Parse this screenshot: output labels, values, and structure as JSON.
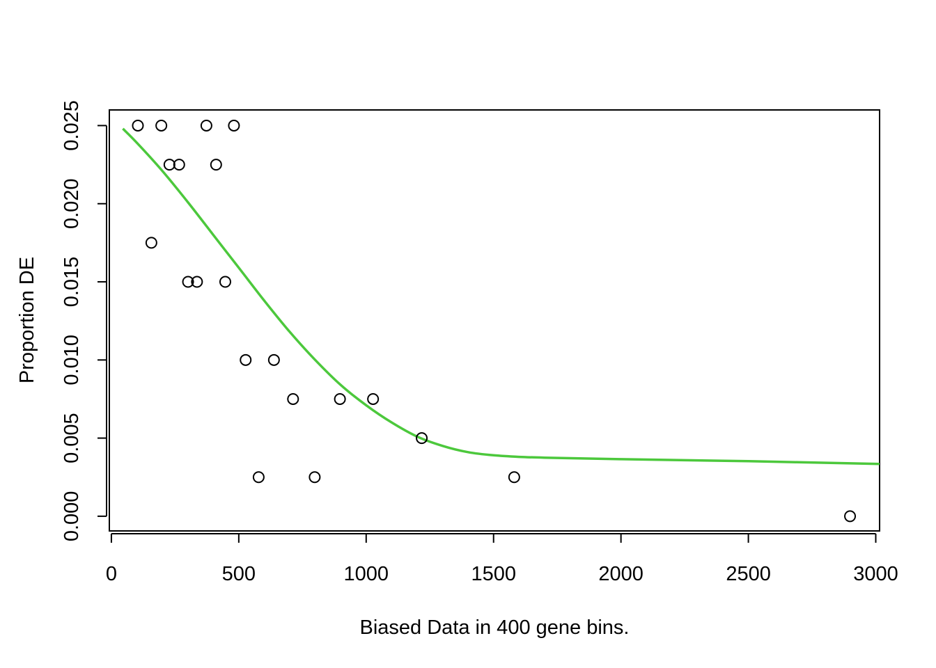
{
  "chart_data": {
    "type": "scatter",
    "title": "",
    "xlabel": "Biased Data in 400 gene bins.",
    "ylabel": "Proportion DE",
    "xlim": [
      -8,
      3015
    ],
    "ylim": [
      -0.00094,
      0.026
    ],
    "x_ticks": [
      0,
      500,
      1000,
      1500,
      2000,
      2500,
      3000
    ],
    "x_tick_labels": [
      "0",
      "500",
      "1000",
      "1500",
      "2000",
      "2500",
      "3000"
    ],
    "y_ticks": [
      0.0,
      0.005,
      0.01,
      0.015,
      0.02,
      0.025
    ],
    "y_tick_labels": [
      "0.000",
      "0.005",
      "0.010",
      "0.015",
      "0.020",
      "0.025"
    ],
    "grid": false,
    "legend": "none",
    "points": {
      "name": "",
      "marker": "open-circle",
      "color": "#000000",
      "x": [
        104,
        196,
        228,
        266,
        373,
        481,
        411,
        157,
        301,
        336,
        447,
        527,
        638,
        713,
        897,
        1027,
        1218,
        578,
        798,
        1581,
        2899
      ],
      "y": [
        0.025,
        0.025,
        0.0225,
        0.0225,
        0.025,
        0.025,
        0.0225,
        0.0175,
        0.015,
        0.015,
        0.015,
        0.01,
        0.01,
        0.0075,
        0.0075,
        0.0075,
        0.005,
        0.0025,
        0.0025,
        0.0025,
        0.0
      ]
    },
    "fit_curve": {
      "name": "",
      "color": "#4cc83c",
      "x": [
        45,
        100,
        200,
        300,
        400,
        500,
        600,
        700,
        800,
        900,
        1000,
        1100,
        1200,
        1300,
        1400,
        1500,
        1600,
        1700,
        2000,
        2500,
        3015
      ],
      "y": [
        0.0248,
        0.0239,
        0.0221,
        0.0201,
        0.018,
        0.0159,
        0.0138,
        0.0118,
        0.01,
        0.0084,
        0.0071,
        0.006,
        0.0051,
        0.0045,
        0.0041,
        0.0039,
        0.0038,
        0.00375,
        0.00365,
        0.00352,
        0.00335
      ]
    }
  }
}
